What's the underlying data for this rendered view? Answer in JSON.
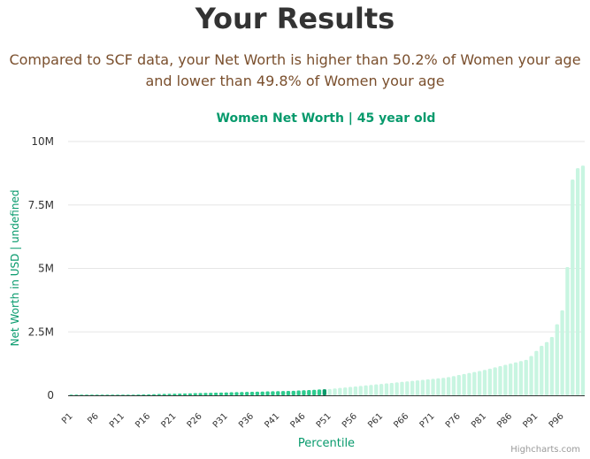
{
  "header": {
    "title": "Your Results",
    "summary_line1": "Compared to SCF data, your Net Worth is higher than 50.2% of Women your age",
    "summary_line2": "and lower than 49.8% of Women your age"
  },
  "credits": "Highcharts.com",
  "colors": {
    "below": "#2ecc8f",
    "highlight": "#0a9a6a",
    "above": "#c8f5e1",
    "text_accent": "#079a6c",
    "summary_text": "#7a4f2d",
    "grid": "#e6e6e6"
  },
  "chart_data": {
    "type": "bar",
    "title": "Women Net Worth | 45 year old",
    "xlabel": "Percentile",
    "ylabel": "Net Worth in USD | undefined",
    "ylim": [
      0,
      10000000
    ],
    "yticks": [
      0,
      2500000,
      5000000,
      7500000,
      10000000
    ],
    "ytick_labels": [
      "0",
      "2.5M",
      "5M",
      "7.5M",
      "10M"
    ],
    "xtick_labels": [
      "P1",
      "P6",
      "P11",
      "P16",
      "P21",
      "P26",
      "P31",
      "P36",
      "P41",
      "P46",
      "P51",
      "P56",
      "P61",
      "P66",
      "P71",
      "P76",
      "P81",
      "P86",
      "P91",
      "P96"
    ],
    "highlight_percentile": 50,
    "grid": true,
    "legend": "none",
    "categories": [
      "P1",
      "P2",
      "P3",
      "P4",
      "P5",
      "P6",
      "P7",
      "P8",
      "P9",
      "P10",
      "P11",
      "P12",
      "P13",
      "P14",
      "P15",
      "P16",
      "P17",
      "P18",
      "P19",
      "P20",
      "P21",
      "P22",
      "P23",
      "P24",
      "P25",
      "P26",
      "P27",
      "P28",
      "P29",
      "P30",
      "P31",
      "P32",
      "P33",
      "P34",
      "P35",
      "P36",
      "P37",
      "P38",
      "P39",
      "P40",
      "P41",
      "P42",
      "P43",
      "P44",
      "P45",
      "P46",
      "P47",
      "P48",
      "P49",
      "P50",
      "P51",
      "P52",
      "P53",
      "P54",
      "P55",
      "P56",
      "P57",
      "P58",
      "P59",
      "P60",
      "P61",
      "P62",
      "P63",
      "P64",
      "P65",
      "P66",
      "P67",
      "P68",
      "P69",
      "P70",
      "P71",
      "P72",
      "P73",
      "P74",
      "P75",
      "P76",
      "P77",
      "P78",
      "P79",
      "P80",
      "P81",
      "P82",
      "P83",
      "P84",
      "P85",
      "P86",
      "P87",
      "P88",
      "P89",
      "P90",
      "P91",
      "P92",
      "P93",
      "P94",
      "P95",
      "P96",
      "P97",
      "P98",
      "P99",
      "P100"
    ],
    "values": [
      -50000,
      -30000,
      -15000,
      -5000,
      0,
      5000,
      8000,
      10000,
      12000,
      15000,
      18000,
      20000,
      25000,
      30000,
      35000,
      40000,
      45000,
      50000,
      55000,
      60000,
      65000,
      70000,
      75000,
      80000,
      85000,
      90000,
      95000,
      100000,
      105000,
      110000,
      115000,
      120000,
      125000,
      130000,
      135000,
      140000,
      145000,
      150000,
      155000,
      160000,
      165000,
      170000,
      175000,
      180000,
      190000,
      200000,
      210000,
      220000,
      230000,
      240000,
      250000,
      270000,
      290000,
      310000,
      330000,
      350000,
      370000,
      390000,
      410000,
      430000,
      450000,
      470000,
      490000,
      510000,
      530000,
      550000,
      570000,
      590000,
      610000,
      630000,
      650000,
      670000,
      690000,
      720000,
      760000,
      800000,
      840000,
      880000,
      920000,
      960000,
      1000000,
      1050000,
      1100000,
      1150000,
      1200000,
      1250000,
      1300000,
      1350000,
      1400000,
      1550000,
      1750000,
      1950000,
      2100000,
      2300000,
      2800000,
      3350000,
      5050000,
      8500000,
      8950000,
      9050000
    ]
  }
}
